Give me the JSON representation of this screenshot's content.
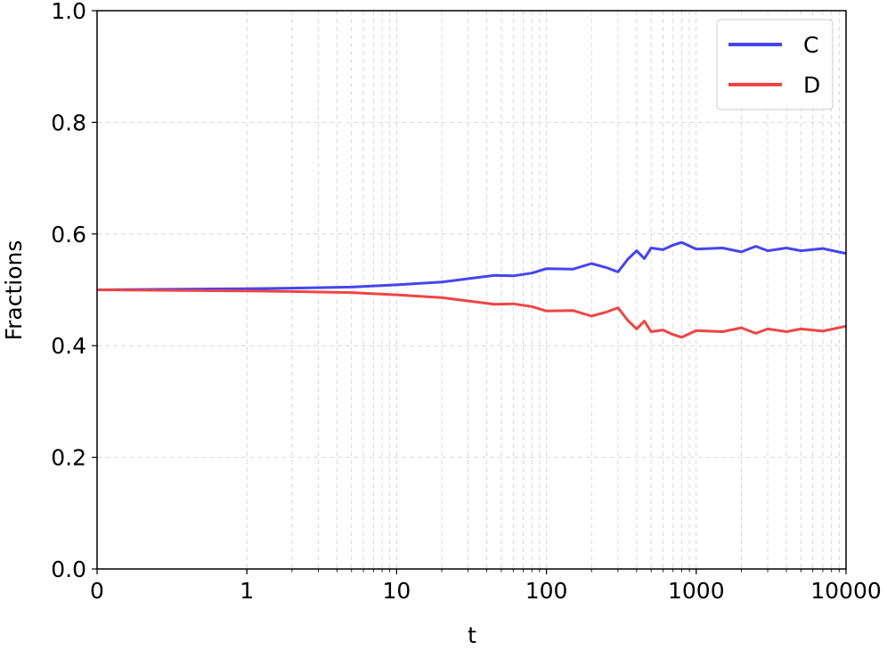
{
  "chart_data": {
    "type": "line",
    "xlabel": "t",
    "ylabel": "Fractions",
    "x_scale": "symlog",
    "xlim": [
      0,
      10000
    ],
    "ylim": [
      0.0,
      1.0
    ],
    "x_ticks": [
      0,
      1,
      10,
      100,
      1000,
      10000
    ],
    "x_tick_labels": [
      "0",
      "1",
      "10",
      "100",
      "1000",
      "10000"
    ],
    "y_ticks": [
      0.0,
      0.2,
      0.4,
      0.6,
      0.8,
      1.0
    ],
    "y_tick_labels": [
      "0.0",
      "0.2",
      "0.4",
      "0.6",
      "0.8",
      "1.0"
    ],
    "grid": true,
    "legend_position": "top-right",
    "series": [
      {
        "name": "C",
        "color": "#4545ee",
        "points": [
          [
            0,
            0.5
          ],
          [
            1,
            0.502
          ],
          [
            2,
            0.503
          ],
          [
            5,
            0.505
          ],
          [
            10,
            0.509
          ],
          [
            20,
            0.514
          ],
          [
            30,
            0.52
          ],
          [
            45,
            0.526
          ],
          [
            60,
            0.525
          ],
          [
            80,
            0.53
          ],
          [
            100,
            0.538
          ],
          [
            150,
            0.537
          ],
          [
            200,
            0.547
          ],
          [
            250,
            0.54
          ],
          [
            300,
            0.532
          ],
          [
            350,
            0.555
          ],
          [
            400,
            0.57
          ],
          [
            450,
            0.556
          ],
          [
            500,
            0.575
          ],
          [
            600,
            0.572
          ],
          [
            700,
            0.58
          ],
          [
            800,
            0.585
          ],
          [
            1000,
            0.573
          ],
          [
            1500,
            0.575
          ],
          [
            2000,
            0.568
          ],
          [
            2500,
            0.578
          ],
          [
            3000,
            0.57
          ],
          [
            4000,
            0.575
          ],
          [
            5000,
            0.57
          ],
          [
            7000,
            0.574
          ],
          [
            10000,
            0.565
          ]
        ]
      },
      {
        "name": "D",
        "color": "#ee4545",
        "points": [
          [
            0,
            0.5
          ],
          [
            1,
            0.498
          ],
          [
            2,
            0.497
          ],
          [
            5,
            0.495
          ],
          [
            10,
            0.491
          ],
          [
            20,
            0.486
          ],
          [
            30,
            0.48
          ],
          [
            45,
            0.474
          ],
          [
            60,
            0.475
          ],
          [
            80,
            0.47
          ],
          [
            100,
            0.462
          ],
          [
            150,
            0.463
          ],
          [
            200,
            0.453
          ],
          [
            250,
            0.46
          ],
          [
            300,
            0.468
          ],
          [
            350,
            0.445
          ],
          [
            400,
            0.43
          ],
          [
            450,
            0.444
          ],
          [
            500,
            0.425
          ],
          [
            600,
            0.428
          ],
          [
            700,
            0.42
          ],
          [
            800,
            0.415
          ],
          [
            1000,
            0.427
          ],
          [
            1500,
            0.425
          ],
          [
            2000,
            0.432
          ],
          [
            2500,
            0.422
          ],
          [
            3000,
            0.43
          ],
          [
            4000,
            0.425
          ],
          [
            5000,
            0.43
          ],
          [
            7000,
            0.426
          ],
          [
            10000,
            0.435
          ]
        ]
      }
    ]
  }
}
